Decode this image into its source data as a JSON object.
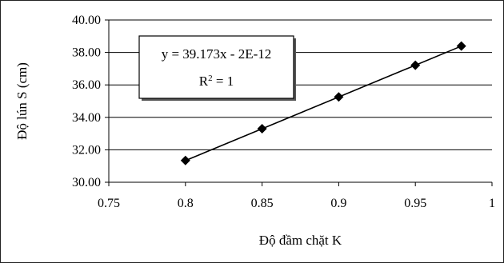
{
  "chart_data": {
    "type": "scatter",
    "xlabel": "Độ đầm chặt K",
    "ylabel": "Độ lún S (cm)",
    "xlim": [
      0.75,
      1
    ],
    "ylim": [
      30,
      40
    ],
    "x_ticks": [
      "0.75",
      "0.8",
      "0.85",
      "0.9",
      "0.95",
      "1"
    ],
    "y_ticks": [
      "30.00",
      "32.00",
      "34.00",
      "36.00",
      "38.00",
      "40.00"
    ],
    "grid": "horizontal",
    "series": [
      {
        "marker": "diamond",
        "color": "#000000",
        "x": [
          0.8,
          0.85,
          0.9,
          0.95,
          0.98
        ],
        "y": [
          31.34,
          33.3,
          35.26,
          37.21,
          38.39
        ]
      }
    ],
    "trendline": {
      "slope": 39.173,
      "intercept": 0,
      "x_range": [
        0.8,
        0.98
      ]
    },
    "annotation": {
      "equation": "y = 39.173x - 2E-12",
      "r2_base": "R",
      "r2_sup": "2",
      "r2_tail": " = 1"
    }
  }
}
